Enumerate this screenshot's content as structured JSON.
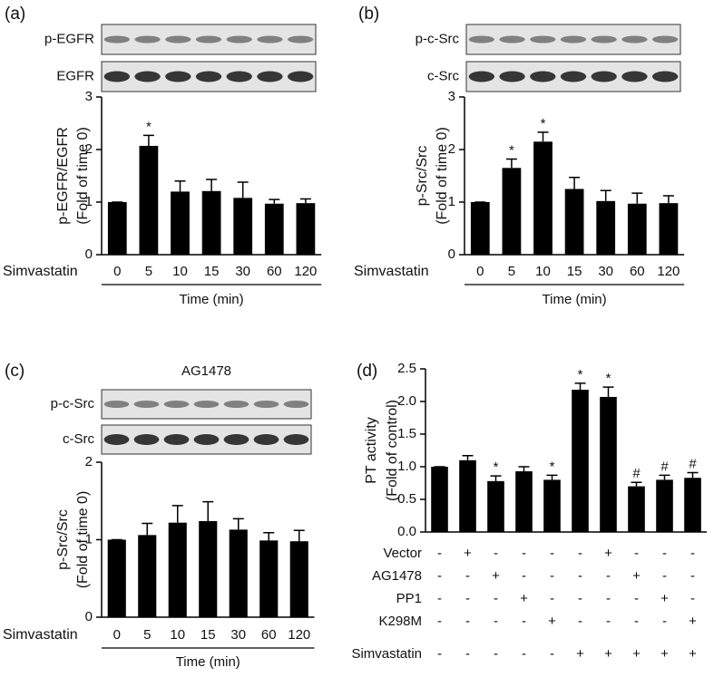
{
  "chart_data": [
    {
      "type": "bar",
      "panel": "(a)",
      "blots": [
        "p-EGFR",
        "EGFR"
      ],
      "row_label": "Simvastatin",
      "categories": [
        "0",
        "5",
        "10",
        "15",
        "30",
        "60",
        "120"
      ],
      "values": [
        1.0,
        2.07,
        1.2,
        1.21,
        1.08,
        0.97,
        0.98
      ],
      "errors": [
        0.0,
        0.2,
        0.2,
        0.22,
        0.3,
        0.08,
        0.08
      ],
      "annotations": [
        null,
        "*",
        null,
        null,
        null,
        null,
        null
      ],
      "x_label": "Time (min)",
      "y_label": [
        "p-EGFR/EGFR",
        "(Fold of time 0)"
      ],
      "ylim": [
        0,
        3
      ],
      "yticks": [
        0,
        1,
        2,
        3
      ],
      "color": "#000000"
    },
    {
      "type": "bar",
      "panel": "(b)",
      "blots": [
        "p-c-Src",
        "c-Src"
      ],
      "row_label": "Simvastatin",
      "categories": [
        "0",
        "5",
        "10",
        "15",
        "30",
        "60",
        "120"
      ],
      "values": [
        1.0,
        1.65,
        2.15,
        1.25,
        1.02,
        0.97,
        0.98
      ],
      "errors": [
        0.0,
        0.17,
        0.18,
        0.22,
        0.2,
        0.2,
        0.14
      ],
      "annotations": [
        null,
        "*",
        "*",
        null,
        null,
        null,
        null
      ],
      "x_label": "Time (min)",
      "y_label": [
        "p-Src/Src",
        "(Fold of time 0)"
      ],
      "ylim": [
        0,
        3
      ],
      "yticks": [
        0,
        1,
        2,
        3
      ],
      "color": "#000000"
    },
    {
      "type": "bar",
      "panel": "(c)",
      "title": "AG1478",
      "blots": [
        "p-c-Src",
        "c-Src"
      ],
      "row_label": "Simvastatin",
      "categories": [
        "0",
        "5",
        "10",
        "15",
        "30",
        "60",
        "120"
      ],
      "values": [
        1.0,
        1.06,
        1.22,
        1.24,
        1.13,
        0.99,
        0.98
      ],
      "errors": [
        0.0,
        0.15,
        0.22,
        0.25,
        0.14,
        0.1,
        0.14
      ],
      "annotations": [
        null,
        null,
        null,
        null,
        null,
        null,
        null
      ],
      "x_label": "Time (min)",
      "y_label": [
        "p-Src/Src",
        "(Fold of time 0)"
      ],
      "ylim": [
        0,
        2
      ],
      "yticks": [
        0,
        1,
        2
      ],
      "color": "#000000"
    },
    {
      "type": "bar",
      "panel": "(d)",
      "values": [
        1.0,
        1.1,
        0.78,
        0.93,
        0.8,
        2.18,
        2.07,
        0.7,
        0.8,
        0.83
      ],
      "errors": [
        0.0,
        0.07,
        0.08,
        0.07,
        0.07,
        0.1,
        0.15,
        0.06,
        0.07,
        0.08
      ],
      "annotations": [
        null,
        null,
        "*",
        null,
        "*",
        "*",
        "*",
        "#",
        "#",
        "#"
      ],
      "conditions": [
        {
          "name": "Vector",
          "signs": [
            "-",
            "+",
            "-",
            "-",
            "-",
            "-",
            "+",
            "-",
            "-",
            "-"
          ]
        },
        {
          "name": "AG1478",
          "signs": [
            "-",
            "-",
            "+",
            "-",
            "-",
            "-",
            "-",
            "+",
            "-",
            "-"
          ]
        },
        {
          "name": "PP1",
          "signs": [
            "-",
            "-",
            "-",
            "+",
            "-",
            "-",
            "-",
            "-",
            "+",
            "-"
          ]
        },
        {
          "name": "K298M",
          "signs": [
            "-",
            "-",
            "-",
            "-",
            "+",
            "-",
            "-",
            "-",
            "-",
            "+"
          ]
        },
        {
          "name": "Simvastatin",
          "signs": [
            "-",
            "-",
            "-",
            "-",
            "-",
            "+",
            "+",
            "+",
            "+",
            "+"
          ]
        }
      ],
      "y_label": [
        "PT activity",
        "(Fold of control)"
      ],
      "ylim": [
        0,
        2.5
      ],
      "yticks": [
        {
          "value": 0,
          "label": "0.0"
        },
        0.5,
        {
          "value": 1,
          "label": "1.0"
        },
        1.5,
        {
          "value": 2,
          "label": "2.0"
        },
        2.5
      ],
      "color": "#000000"
    }
  ]
}
